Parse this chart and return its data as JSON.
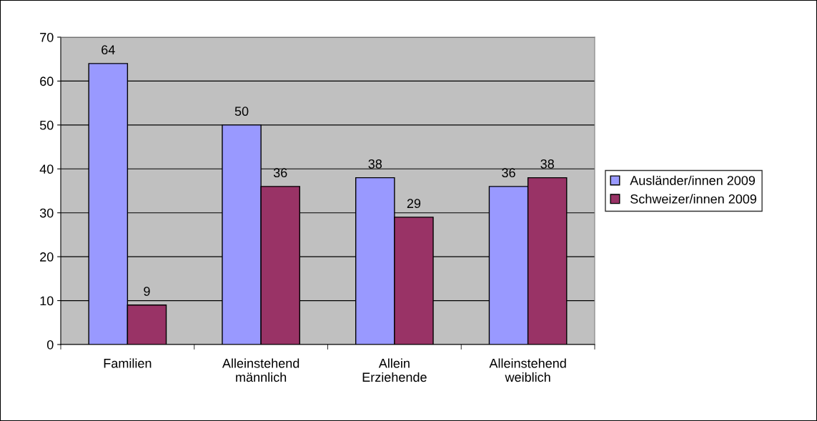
{
  "chart_data": {
    "type": "bar",
    "categories": [
      "Familien",
      "Alleinstehend\nmännlich",
      "Allein\nErziehende",
      "Alleinstehend\nweiblich"
    ],
    "series": [
      {
        "name": "Ausländer/innen 2009",
        "color": "#9999ff",
        "values": [
          64,
          50,
          38,
          36
        ]
      },
      {
        "name": "Schweizer/innen 2009",
        "color": "#993366",
        "values": [
          9,
          36,
          29,
          38
        ]
      }
    ],
    "ylim": [
      0,
      70
    ],
    "yticks": [
      0,
      10,
      20,
      30,
      40,
      50,
      60,
      70
    ],
    "grid": "y",
    "legend": "right",
    "data_labels": true
  }
}
